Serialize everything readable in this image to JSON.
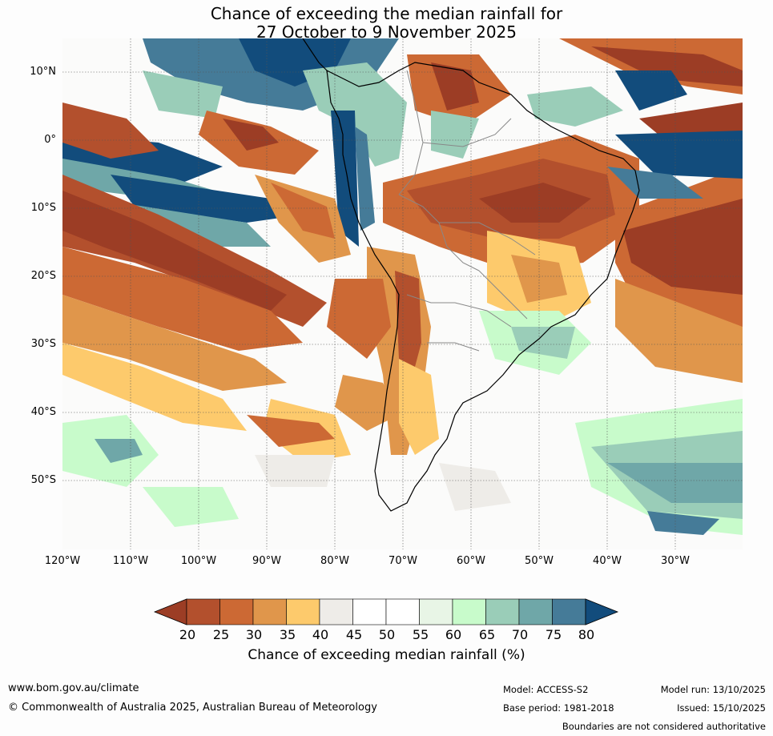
{
  "title": {
    "line1": "Chance of exceeding the median rainfall for",
    "line2": "27 October to 9 November 2025"
  },
  "map": {
    "region": "South America",
    "lat_labels": [
      "10°N",
      "0°",
      "10°S",
      "20°S",
      "30°S",
      "40°S",
      "50°S"
    ],
    "lon_labels": [
      "120°W",
      "110°W",
      "100°W",
      "90°W",
      "80°W",
      "70°W",
      "60°W",
      "50°W",
      "40°W",
      "30°W"
    ],
    "lat_range": [
      -60,
      15
    ],
    "lon_range": [
      -120,
      -20
    ],
    "gridlines": true
  },
  "colorbar": {
    "ticks": [
      "20",
      "25",
      "30",
      "35",
      "40",
      "45",
      "50",
      "55",
      "60",
      "65",
      "70",
      "75",
      "80"
    ],
    "colors": [
      "#9c3d25",
      "#b3502d",
      "#cc6934",
      "#e0964b",
      "#fdca6c",
      "#eeece8",
      "#ffffff",
      "#ffffff",
      "#e8f5e6",
      "#c8fbcb",
      "#9acdb8",
      "#6fa7a8",
      "#457b98",
      "#124c7c"
    ],
    "label": "Chance of exceeding median rainfall (%)"
  },
  "footer": {
    "url": "www.bom.gov.au/climate",
    "copyright": "© Commonwealth of Australia 2025, Australian Bureau of Meteorology",
    "model": "Model: ACCESS-S2",
    "base_period": "Base period: 1981-2018",
    "model_run": "Model run: 13/10/2025",
    "issued": "Issued: 15/10/2025",
    "disclaimer": "Boundaries are not considered authoritative"
  }
}
